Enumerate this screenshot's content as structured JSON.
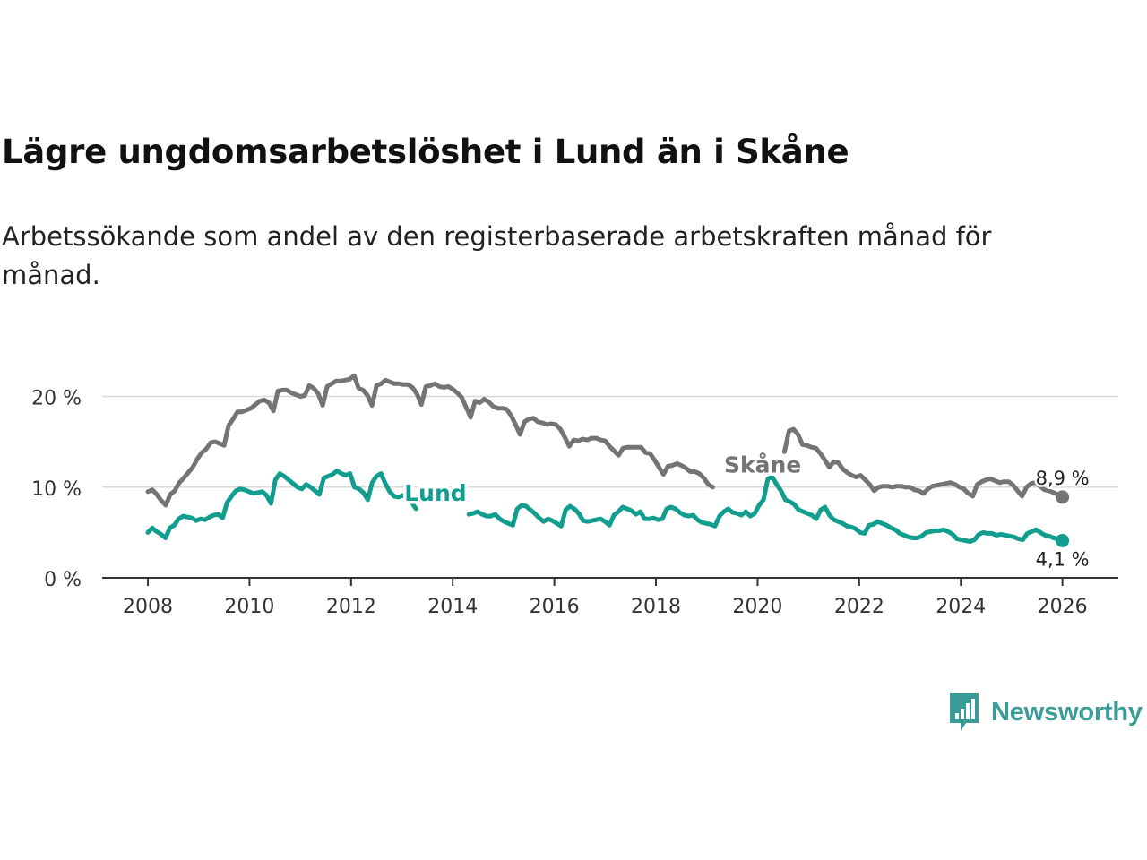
{
  "title": "Lägre ungdomsarbetslöshet i Lund än i Skåne",
  "subtitle": "Arbetssökande som andel av den registerbaserade arbetskraften månad för månad.",
  "brand": {
    "name": "Newsworthy",
    "icon": "bar-chart-speech-bubble-icon",
    "color": "#3a9c96"
  },
  "chart_data": {
    "type": "line",
    "x_domain": [
      2008,
      2026
    ],
    "xlim": [
      2007.1,
      2027.1
    ],
    "ylim": [
      0,
      24
    ],
    "x_ticks": [
      2008,
      2010,
      2012,
      2014,
      2016,
      2018,
      2020,
      2022,
      2024,
      2026
    ],
    "y_ticks": [
      0,
      10,
      20
    ],
    "y_tick_labels": [
      "0 %",
      "10 %",
      "20 %"
    ],
    "grid": true,
    "series": [
      {
        "name": "Skåne",
        "color": "#747474",
        "end_label": "8,9 %",
        "end_value": 8.9,
        "values": [
          9.5,
          9.7,
          9.2,
          8.5,
          8.0,
          9.2,
          9.6,
          10.5,
          11.0,
          11.6,
          12.2,
          13.1,
          13.8,
          14.2,
          14.9,
          15.0,
          14.8,
          14.6,
          16.8,
          17.5,
          18.3,
          18.3,
          18.5,
          18.7,
          19.1,
          19.5,
          19.6,
          19.3,
          18.4,
          20.6,
          20.7,
          20.7,
          20.4,
          20.2,
          20.0,
          20.1,
          21.2,
          20.9,
          20.3,
          19.0,
          21.1,
          21.4,
          21.7,
          21.7,
          21.8,
          21.9,
          22.3,
          20.9,
          20.7,
          20.1,
          19.0,
          21.2,
          21.4,
          21.8,
          21.6,
          21.4,
          21.4,
          21.3,
          21.3,
          21.0,
          20.3,
          19.1,
          21.1,
          21.2,
          21.4,
          21.1,
          21.0,
          21.1,
          20.8,
          20.4,
          19.9,
          18.8,
          17.7,
          19.5,
          19.3,
          19.7,
          19.4,
          18.9,
          18.7,
          18.7,
          18.6,
          17.9,
          16.9,
          15.8,
          17.2,
          17.5,
          17.6,
          17.2,
          17.1,
          16.9,
          17.0,
          16.9,
          16.4,
          15.5,
          14.5,
          15.2,
          15.1,
          15.3,
          15.2,
          15.4,
          15.4,
          15.2,
          15.1,
          14.5,
          14.0,
          13.5,
          14.3,
          14.4,
          14.4,
          14.4,
          14.4,
          13.8,
          13.7,
          13.0,
          12.2,
          11.4,
          12.3,
          12.4,
          12.6,
          12.4,
          12.1,
          11.7,
          11.7,
          11.5,
          11.0,
          10.3,
          10.0,
          null,
          null,
          null,
          null,
          null,
          null,
          null,
          null,
          null,
          null,
          null,
          null,
          null,
          null,
          null,
          13.9,
          16.2,
          16.4,
          15.8,
          14.7,
          14.6,
          14.4,
          14.3,
          13.7,
          13.0,
          12.2,
          12.8,
          12.7,
          12.0,
          11.6,
          11.3,
          11.1,
          11.3,
          10.8,
          10.3,
          9.6,
          10.0,
          10.1,
          10.1,
          10.0,
          10.1,
          10.1,
          10.0,
          10.0,
          9.7,
          9.6,
          9.3,
          9.8,
          10.1,
          10.2,
          10.3,
          10.4,
          10.5,
          10.3,
          10.0,
          9.8,
          9.3,
          9.0,
          10.3,
          10.6,
          10.8,
          10.9,
          10.7,
          10.5,
          10.6,
          10.6,
          10.2,
          9.6,
          9.0,
          10.0,
          10.4,
          10.5,
          10.1,
          9.7,
          9.6,
          9.4,
          9.2,
          8.9
        ]
      },
      {
        "name": "Lund",
        "color": "#119e8f",
        "end_label": "4,1 %",
        "end_value": 4.1,
        "values": [
          5.0,
          5.5,
          5.1,
          4.8,
          4.4,
          5.5,
          5.8,
          6.5,
          6.8,
          6.7,
          6.6,
          6.3,
          6.5,
          6.4,
          6.7,
          6.9,
          7.0,
          6.6,
          8.3,
          9.0,
          9.6,
          9.8,
          9.7,
          9.5,
          9.3,
          9.4,
          9.5,
          9.1,
          8.2,
          10.8,
          11.5,
          11.2,
          10.8,
          10.4,
          10.0,
          9.8,
          10.3,
          10.0,
          9.6,
          9.2,
          11.0,
          11.2,
          11.4,
          11.8,
          11.5,
          11.3,
          11.5,
          10.0,
          9.8,
          9.4,
          8.6,
          10.5,
          11.2,
          11.5,
          10.4,
          9.5,
          9.0,
          8.9,
          9.1,
          8.7,
          8.3,
          7.6,
          null,
          null,
          null,
          null,
          null,
          null,
          null,
          null,
          null,
          null,
          null,
          7.0,
          7.1,
          7.3,
          7.0,
          6.8,
          6.8,
          7.0,
          6.5,
          6.2,
          6.0,
          5.8,
          7.6,
          8.0,
          7.9,
          7.5,
          7.1,
          6.6,
          6.2,
          6.5,
          6.3,
          6.0,
          5.7,
          7.5,
          7.9,
          7.6,
          7.1,
          6.3,
          6.2,
          6.3,
          6.4,
          6.5,
          6.2,
          5.8,
          6.9,
          7.3,
          7.8,
          7.6,
          7.4,
          7.0,
          7.3,
          6.5,
          6.5,
          6.6,
          6.4,
          6.5,
          7.6,
          7.8,
          7.6,
          7.2,
          6.9,
          6.8,
          6.9,
          6.4,
          6.1,
          6.0,
          5.9,
          5.7,
          6.8,
          7.3,
          7.6,
          7.2,
          7.1,
          6.9,
          7.3,
          6.8,
          7.1,
          8.0,
          8.6,
          10.9,
          11.1,
          10.3,
          9.6,
          8.6,
          8.4,
          8.1,
          7.5,
          7.3,
          7.1,
          6.9,
          6.5,
          7.5,
          7.8,
          6.9,
          6.4,
          6.2,
          6.0,
          5.7,
          5.6,
          5.4,
          5.0,
          4.9,
          5.8,
          5.9,
          6.2,
          6.0,
          5.8,
          5.5,
          5.3,
          4.9,
          4.7,
          4.5,
          4.4,
          4.4,
          4.6,
          5.0,
          5.1,
          5.2,
          5.2,
          5.3,
          5.1,
          4.8,
          4.3,
          4.2,
          4.1,
          4.0,
          4.2,
          4.8,
          5.0,
          4.9,
          4.9,
          4.7,
          4.8,
          4.7,
          4.6,
          4.5,
          4.3,
          4.2,
          4.9,
          5.1,
          5.3,
          5.0,
          4.7,
          4.6,
          4.4,
          4.3,
          4.1
        ]
      }
    ],
    "series_labels": [
      {
        "text": "Skåne",
        "series": "Skåne",
        "x": 2020.1,
        "y": 11.6
      },
      {
        "text": "Lund",
        "series": "Lund",
        "x": 2013.66,
        "y": 8.5
      }
    ]
  }
}
